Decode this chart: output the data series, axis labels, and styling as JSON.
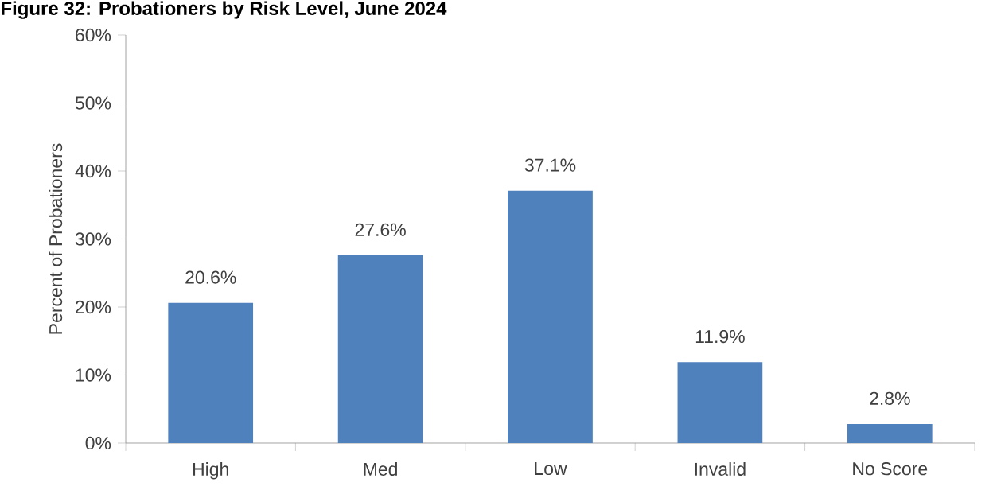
{
  "chart_data": {
    "type": "bar",
    "title": "Figure 32: Probationers by Risk Level, June 2024",
    "ylabel": "Percent of Probationers",
    "categories": [
      "High",
      "Med",
      "Low",
      "Invalid",
      "No Score"
    ],
    "values": [
      20.6,
      27.6,
      37.1,
      11.9,
      2.8
    ],
    "value_labels": [
      "20.6%",
      "27.6%",
      "37.1%",
      "11.9%",
      "2.8%"
    ],
    "color": "#4f81bd",
    "ylim": [
      0,
      60
    ],
    "yticks": [
      {
        "value": 0,
        "label": "0%"
      },
      {
        "value": 10,
        "label": "10%"
      },
      {
        "value": 20,
        "label": "20%"
      },
      {
        "value": 30,
        "label": "30%"
      },
      {
        "value": 40,
        "label": "40%"
      },
      {
        "value": 50,
        "label": "50%"
      },
      {
        "value": 60,
        "label": "60%"
      }
    ]
  }
}
